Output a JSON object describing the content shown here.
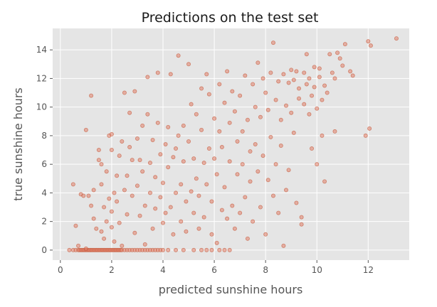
{
  "chart_data": {
    "type": "scatter",
    "title": "Predictions on the test set",
    "xlabel": "predicted sunshine hours",
    "ylabel": "true sunshine hours",
    "xlim": [
      -0.3,
      13.6
    ],
    "ylim": [
      -0.7,
      15.5
    ],
    "xticks": [
      0,
      2,
      4,
      6,
      8,
      10,
      12
    ],
    "yticks": [
      0,
      2,
      4,
      6,
      8,
      10,
      12,
      14
    ],
    "grid": true,
    "style": "ggplot",
    "colors": {
      "background": "#e5e5e5",
      "grid": "#ffffff",
      "point": "#e2806a",
      "point_edge": "#c1502e"
    },
    "points": [
      [
        0.35,
        0
      ],
      [
        0.5,
        0
      ],
      [
        0.6,
        0
      ],
      [
        0.7,
        0
      ],
      [
        0.75,
        0
      ],
      [
        0.8,
        0
      ],
      [
        0.85,
        0
      ],
      [
        0.9,
        0
      ],
      [
        0.95,
        0
      ],
      [
        1.0,
        0
      ],
      [
        1.05,
        0
      ],
      [
        1.1,
        0
      ],
      [
        1.15,
        0
      ],
      [
        1.2,
        0
      ],
      [
        1.25,
        0
      ],
      [
        1.3,
        0
      ],
      [
        1.35,
        0
      ],
      [
        1.4,
        0
      ],
      [
        1.45,
        0
      ],
      [
        1.5,
        0
      ],
      [
        1.55,
        0
      ],
      [
        1.6,
        0
      ],
      [
        1.65,
        0
      ],
      [
        1.7,
        0
      ],
      [
        1.75,
        0
      ],
      [
        1.8,
        0
      ],
      [
        1.85,
        0
      ],
      [
        1.9,
        0
      ],
      [
        1.95,
        0
      ],
      [
        2.0,
        0
      ],
      [
        2.05,
        0
      ],
      [
        2.1,
        0
      ],
      [
        2.15,
        0
      ],
      [
        2.2,
        0
      ],
      [
        2.25,
        0
      ],
      [
        2.3,
        0
      ],
      [
        2.35,
        0
      ],
      [
        2.4,
        0
      ],
      [
        2.5,
        0
      ],
      [
        2.6,
        0
      ],
      [
        2.7,
        0
      ],
      [
        2.8,
        0
      ],
      [
        2.9,
        0
      ],
      [
        3.0,
        0
      ],
      [
        3.1,
        0
      ],
      [
        3.2,
        0
      ],
      [
        3.3,
        0
      ],
      [
        3.4,
        0
      ],
      [
        3.5,
        0
      ],
      [
        3.6,
        0
      ],
      [
        3.7,
        0
      ],
      [
        3.8,
        0
      ],
      [
        3.9,
        0
      ],
      [
        4.0,
        0
      ],
      [
        4.2,
        0
      ],
      [
        4.5,
        0
      ],
      [
        4.8,
        0
      ],
      [
        5.2,
        0
      ],
      [
        5.5,
        0
      ],
      [
        5.7,
        0
      ],
      [
        5.9,
        0
      ],
      [
        6.2,
        0
      ],
      [
        6.4,
        0
      ],
      [
        6.6,
        0
      ],
      [
        0.5,
        4.6
      ],
      [
        0.6,
        1.7
      ],
      [
        0.7,
        0.3
      ],
      [
        0.8,
        3.9
      ],
      [
        0.9,
        3.8
      ],
      [
        1.0,
        0.1
      ],
      [
        1.0,
        8.4
      ],
      [
        1.1,
        3.8
      ],
      [
        1.2,
        10.8
      ],
      [
        1.2,
        3.1
      ],
      [
        1.3,
        2.2
      ],
      [
        1.3,
        4.2
      ],
      [
        1.4,
        1.5
      ],
      [
        1.5,
        6.3
      ],
      [
        1.5,
        7.0
      ],
      [
        1.6,
        6.0
      ],
      [
        1.6,
        4.6
      ],
      [
        1.6,
        1.3
      ],
      [
        1.7,
        3.0
      ],
      [
        1.7,
        0.8
      ],
      [
        1.8,
        2.0
      ],
      [
        1.8,
        5.5
      ],
      [
        1.9,
        3.6
      ],
      [
        1.9,
        8.0
      ],
      [
        2.0,
        1.6
      ],
      [
        2.0,
        2.7
      ],
      [
        2.0,
        7.0
      ],
      [
        2.0,
        8.1
      ],
      [
        2.1,
        0.6
      ],
      [
        2.1,
        4.0
      ],
      [
        2.2,
        5.2
      ],
      [
        2.2,
        3.4
      ],
      [
        2.3,
        1.9
      ],
      [
        2.3,
        6.6
      ],
      [
        2.4,
        7.6
      ],
      [
        2.4,
        0.3
      ],
      [
        2.5,
        4.2
      ],
      [
        2.5,
        11.0
      ],
      [
        2.6,
        2.5
      ],
      [
        2.6,
        5.2
      ],
      [
        2.7,
        7.2
      ],
      [
        2.7,
        9.6
      ],
      [
        2.8,
        3.8
      ],
      [
        2.8,
        6.3
      ],
      [
        2.9,
        11.1
      ],
      [
        2.9,
        1.2
      ],
      [
        3.0,
        4.5
      ],
      [
        3.0,
        7.8
      ],
      [
        3.1,
        2.4
      ],
      [
        3.1,
        6.3
      ],
      [
        3.2,
        8.7
      ],
      [
        3.2,
        5.5
      ],
      [
        3.3,
        0.4
      ],
      [
        3.3,
        3.1
      ],
      [
        3.4,
        12.1
      ],
      [
        3.4,
        9.5
      ],
      [
        3.5,
        4.0
      ],
      [
        3.5,
        6.1
      ],
      [
        3.6,
        1.5
      ],
      [
        3.6,
        7.7
      ],
      [
        3.7,
        2.9
      ],
      [
        3.7,
        5.1
      ],
      [
        3.8,
        12.4
      ],
      [
        3.8,
        8.9
      ],
      [
        3.9,
        3.7
      ],
      [
        3.9,
        6.7
      ],
      [
        4.0,
        4.7
      ],
      [
        4.0,
        1.9
      ],
      [
        4.1,
        7.4
      ],
      [
        4.1,
        2.6
      ],
      [
        4.2,
        5.8
      ],
      [
        4.2,
        8.6
      ],
      [
        4.3,
        12.3
      ],
      [
        4.3,
        3.0
      ],
      [
        4.4,
        6.5
      ],
      [
        4.4,
        1.1
      ],
      [
        4.5,
        4.0
      ],
      [
        4.5,
        7.1
      ],
      [
        4.6,
        13.6
      ],
      [
        4.6,
        8.0
      ],
      [
        4.7,
        4.6
      ],
      [
        4.7,
        2.0
      ],
      [
        4.8,
        8.7
      ],
      [
        4.8,
        6.2
      ],
      [
        4.9,
        3.4
      ],
      [
        4.9,
        1.3
      ],
      [
        5.0,
        13.0
      ],
      [
        5.0,
        7.6
      ],
      [
        5.1,
        4.1
      ],
      [
        5.1,
        10.2
      ],
      [
        5.2,
        6.4
      ],
      [
        5.2,
        2.6
      ],
      [
        5.3,
        9.5
      ],
      [
        5.3,
        5.0
      ],
      [
        5.4,
        1.5
      ],
      [
        5.4,
        3.8
      ],
      [
        5.5,
        11.3
      ],
      [
        5.5,
        8.4
      ],
      [
        5.6,
        6.1
      ],
      [
        5.6,
        2.3
      ],
      [
        5.7,
        12.3
      ],
      [
        5.7,
        4.6
      ],
      [
        5.8,
        7.1
      ],
      [
        5.8,
        10.9
      ],
      [
        5.9,
        1.1
      ],
      [
        5.9,
        3.4
      ],
      [
        6.0,
        9.2
      ],
      [
        6.0,
        6.4
      ],
      [
        6.1,
        5.3
      ],
      [
        6.1,
        0.5
      ],
      [
        6.2,
        11.6
      ],
      [
        6.2,
        8.3
      ],
      [
        6.3,
        2.8
      ],
      [
        6.3,
        7.2
      ],
      [
        6.4,
        10.3
      ],
      [
        6.4,
        4.4
      ],
      [
        6.5,
        12.5
      ],
      [
        6.5,
        2.2
      ],
      [
        6.6,
        8.9
      ],
      [
        6.6,
        6.2
      ],
      [
        6.7,
        11.1
      ],
      [
        6.7,
        3.1
      ],
      [
        6.8,
        9.7
      ],
      [
        6.8,
        1.5
      ],
      [
        6.9,
        7.6
      ],
      [
        6.9,
        5.3
      ],
      [
        7.0,
        10.8
      ],
      [
        7.0,
        2.6
      ],
      [
        7.1,
        8.3
      ],
      [
        7.1,
        6.0
      ],
      [
        7.2,
        12.2
      ],
      [
        7.2,
        3.7
      ],
      [
        7.3,
        9.1
      ],
      [
        7.3,
        0.8
      ],
      [
        7.4,
        6.9
      ],
      [
        7.4,
        4.8
      ],
      [
        7.5,
        11.6
      ],
      [
        7.5,
        2.0
      ],
      [
        7.6,
        10.0
      ],
      [
        7.6,
        7.4
      ],
      [
        7.7,
        13.1
      ],
      [
        7.7,
        5.5
      ],
      [
        7.8,
        9.3
      ],
      [
        7.8,
        3.0
      ],
      [
        7.9,
        12.0
      ],
      [
        7.9,
        6.6
      ],
      [
        8.0,
        11.0
      ],
      [
        8.0,
        1.1
      ],
      [
        8.1,
        9.8
      ],
      [
        8.1,
        4.9
      ],
      [
        8.2,
        7.9
      ],
      [
        8.2,
        12.4
      ],
      [
        8.3,
        14.5
      ],
      [
        8.3,
        3.8
      ],
      [
        8.4,
        10.5
      ],
      [
        8.4,
        6.0
      ],
      [
        8.5,
        11.8
      ],
      [
        8.5,
        2.6
      ],
      [
        8.6,
        9.1
      ],
      [
        8.6,
        7.3
      ],
      [
        8.7,
        12.3
      ],
      [
        8.7,
        0.3
      ],
      [
        8.8,
        10.1
      ],
      [
        8.8,
        4.2
      ],
      [
        8.9,
        11.7
      ],
      [
        8.9,
        5.6
      ],
      [
        9.0,
        12.6
      ],
      [
        9.0,
        9.6
      ],
      [
        9.1,
        11.9
      ],
      [
        9.1,
        8.2
      ],
      [
        9.2,
        3.3
      ],
      [
        9.2,
        12.5
      ],
      [
        9.3,
        11.3
      ],
      [
        9.3,
        10.6
      ],
      [
        9.4,
        1.8
      ],
      [
        9.4,
        2.3
      ],
      [
        9.5,
        12.4
      ],
      [
        9.5,
        10.2
      ],
      [
        9.6,
        11.6
      ],
      [
        9.6,
        13.7
      ],
      [
        9.7,
        9.5
      ],
      [
        9.7,
        12.0
      ],
      [
        9.8,
        10.8
      ],
      [
        9.8,
        7.1
      ],
      [
        9.9,
        12.8
      ],
      [
        9.9,
        11.4
      ],
      [
        10.0,
        6.0
      ],
      [
        10.0,
        9.9
      ],
      [
        10.1,
        12.7
      ],
      [
        10.1,
        12.1
      ],
      [
        10.2,
        8.0
      ],
      [
        10.2,
        10.5
      ],
      [
        10.3,
        11.5
      ],
      [
        10.3,
        4.8
      ],
      [
        10.4,
        11.0
      ],
      [
        10.5,
        13.7
      ],
      [
        10.6,
        12.4
      ],
      [
        10.7,
        12.0
      ],
      [
        10.7,
        8.3
      ],
      [
        10.8,
        13.8
      ],
      [
        10.9,
        13.4
      ],
      [
        11.0,
        12.9
      ],
      [
        11.1,
        14.4
      ],
      [
        11.3,
        12.5
      ],
      [
        11.4,
        12.2
      ],
      [
        11.9,
        8.0
      ],
      [
        12.0,
        14.6
      ],
      [
        12.05,
        8.5
      ],
      [
        12.1,
        14.3
      ],
      [
        13.1,
        14.8
      ]
    ]
  }
}
